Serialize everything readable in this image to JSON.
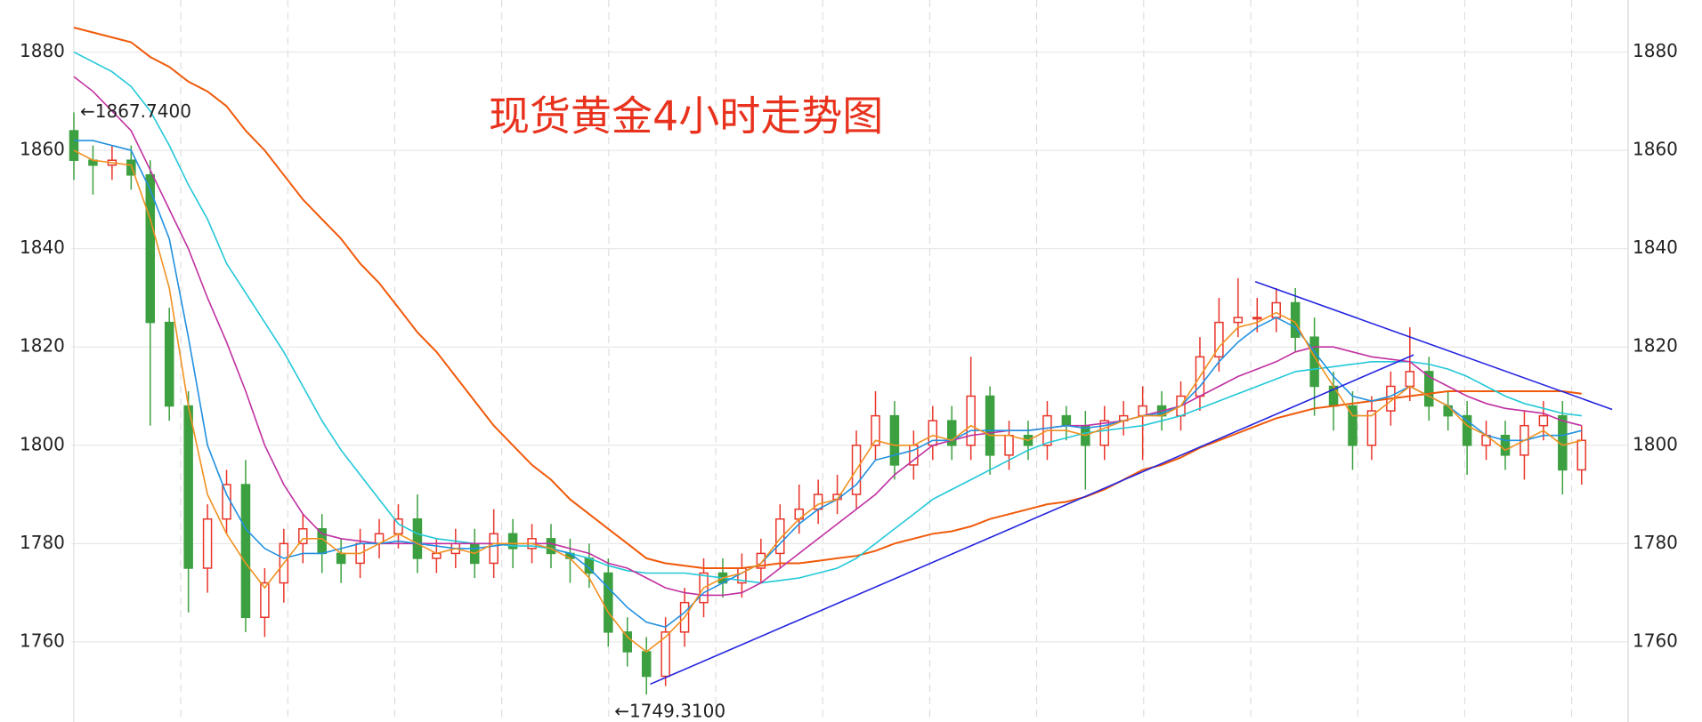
{
  "chart_data": {
    "type": "candlestick",
    "title": "现货黄金4小时走势图",
    "ylim": [
      1743.7,
      1890.6
    ],
    "yticks": [
      1760,
      1780,
      1800,
      1820,
      1840,
      1860,
      1880
    ],
    "grid": true,
    "up_color": "#e8352a",
    "down_color": "#3ca040",
    "open": [
      1864,
      1858,
      1857,
      1858,
      1855,
      1825,
      1808,
      1775,
      1785,
      1792,
      1765,
      1772,
      1780,
      1783,
      1778,
      1776,
      1780,
      1782,
      1785,
      1777,
      1778,
      1780,
      1776,
      1782,
      1779,
      1781,
      1778,
      1777,
      1774,
      1762,
      1758,
      1753,
      1762,
      1768,
      1774,
      1772,
      1775,
      1778,
      1785,
      1787,
      1789,
      1790,
      1800,
      1806,
      1796,
      1800,
      1805,
      1800,
      1810,
      1798,
      1802,
      1800,
      1806,
      1804,
      1800,
      1805,
      1806,
      1808,
      1806,
      1810,
      1818,
      1825,
      1826,
      1826,
      1829,
      1822,
      1812,
      1808,
      1800,
      1807,
      1812,
      1815,
      1808,
      1806,
      1800,
      1802,
      1798,
      1804,
      1806,
      1795
    ],
    "high": [
      1867.74,
      1861,
      1861,
      1861,
      1858,
      1828,
      1811,
      1788,
      1795,
      1797,
      1775,
      1783,
      1786,
      1786,
      1781,
      1783,
      1785,
      1788,
      1790,
      1781,
      1783,
      1783,
      1787,
      1785,
      1784,
      1784,
      1781,
      1780,
      1777,
      1765,
      1761,
      1765,
      1771,
      1777,
      1777,
      1778,
      1781,
      1788,
      1792,
      1793,
      1794,
      1803,
      1811,
      1809,
      1803,
      1808,
      1808,
      1818,
      1812,
      1805,
      1805,
      1809,
      1808,
      1807,
      1808,
      1809,
      1812,
      1811,
      1813,
      1822,
      1830,
      1834,
      1830,
      1832,
      1832,
      1826,
      1815,
      1811,
      1810,
      1815,
      1824,
      1818,
      1811,
      1809,
      1805,
      1805,
      1807,
      1809,
      1809,
      1804
    ],
    "low": [
      1854,
      1851,
      1854,
      1852,
      1804,
      1805,
      1766,
      1770,
      1782,
      1762,
      1761,
      1768,
      1776,
      1774,
      1772,
      1773,
      1777,
      1779,
      1774,
      1774,
      1775,
      1773,
      1773,
      1775,
      1776,
      1775,
      1772,
      1771,
      1759,
      1755,
      1749.31,
      1751,
      1759,
      1765,
      1769,
      1769,
      1772,
      1775,
      1782,
      1784,
      1786,
      1787,
      1797,
      1793,
      1793,
      1797,
      1797,
      1797,
      1794,
      1795,
      1797,
      1797,
      1801,
      1791,
      1797,
      1802,
      1797,
      1803,
      1803,
      1807,
      1815,
      1822,
      1823,
      1823,
      1819,
      1806,
      1803,
      1795,
      1797,
      1804,
      1809,
      1805,
      1803,
      1794,
      1797,
      1795,
      1793,
      1801,
      1790,
      1792
    ],
    "close": [
      1858,
      1857,
      1858,
      1855,
      1825,
      1808,
      1775,
      1785,
      1792,
      1765,
      1772,
      1780,
      1783,
      1778,
      1776,
      1780,
      1782,
      1785,
      1777,
      1778,
      1780,
      1776,
      1782,
      1779,
      1781,
      1778,
      1777,
      1774,
      1762,
      1758,
      1753,
      1762,
      1768,
      1774,
      1772,
      1775,
      1778,
      1785,
      1787,
      1790,
      1790,
      1800,
      1806,
      1796,
      1800,
      1805,
      1800,
      1810,
      1798,
      1802,
      1800,
      1806,
      1804,
      1800,
      1805,
      1806,
      1808,
      1806,
      1810,
      1818,
      1825,
      1826,
      1826,
      1829,
      1822,
      1812,
      1808,
      1800,
      1807,
      1812,
      1815,
      1808,
      1806,
      1800,
      1802,
      1798,
      1804,
      1806,
      1795,
      1801
    ],
    "series": [
      {
        "color": "#f05a0a",
        "values": [
          1885,
          1884,
          1883,
          1882,
          1879,
          1877,
          1874,
          1872,
          1869,
          1864,
          1860,
          1855,
          1850,
          1846,
          1842,
          1837,
          1833,
          1828,
          1823,
          1819,
          1814,
          1809,
          1804,
          1800,
          1796,
          1793,
          1789,
          1786,
          1783,
          1780,
          1777,
          1776,
          1775.5,
          1775,
          1775,
          1775,
          1775.5,
          1776,
          1776,
          1776.5,
          1777,
          1777.5,
          1778.5,
          1780,
          1781,
          1782,
          1782.5,
          1783.5,
          1785,
          1786,
          1787,
          1788,
          1788.5,
          1789.5,
          1791,
          1793,
          1795,
          1796,
          1797.5,
          1799.5,
          1801,
          1802.5,
          1804,
          1805.5,
          1806.5,
          1807.5,
          1808,
          1808.5,
          1809,
          1809.5,
          1810,
          1810.5,
          1811,
          1811,
          1811,
          1811,
          1811,
          1811,
          1811,
          1810.5
        ]
      },
      {
        "color": "#22c8d8",
        "values": [
          1880,
          1878,
          1876,
          1873,
          1868,
          1861,
          1853,
          1846,
          1837,
          1831,
          1825,
          1819,
          1812,
          1805,
          1799,
          1794,
          1789,
          1784,
          1782,
          1781,
          1780.5,
          1780,
          1780,
          1779.5,
          1779.5,
          1779,
          1778,
          1777,
          1775.5,
          1774.5,
          1774,
          1774,
          1774,
          1773.5,
          1773,
          1772.5,
          1772,
          1772.5,
          1773,
          1774,
          1775,
          1777,
          1780,
          1783,
          1786,
          1789,
          1791,
          1793,
          1795,
          1797,
          1799,
          1800.5,
          1801.5,
          1802.5,
          1803,
          1803.5,
          1804,
          1805,
          1806,
          1807.5,
          1809,
          1810.5,
          1812,
          1813.5,
          1815,
          1815.5,
          1816,
          1816.5,
          1817,
          1817,
          1817,
          1816.5,
          1815.5,
          1814,
          1812,
          1810,
          1808.5,
          1807.5,
          1806.5,
          1806
        ]
      },
      {
        "color": "#c030a0",
        "values": [
          1875,
          1872,
          1868,
          1864,
          1856,
          1848,
          1840,
          1830,
          1821,
          1811,
          1800,
          1792,
          1786,
          1782,
          1781,
          1780.5,
          1780,
          1780,
          1780,
          1780,
          1780,
          1780,
          1780,
          1780,
          1780,
          1780,
          1779,
          1778,
          1776,
          1775,
          1773,
          1771,
          1770,
          1769.5,
          1769.5,
          1770,
          1772,
          1775,
          1778,
          1781,
          1784,
          1787,
          1790,
          1794,
          1797,
          1800,
          1801,
          1802,
          1802.5,
          1803,
          1803,
          1803.5,
          1804,
          1804,
          1804.5,
          1805,
          1806,
          1807,
          1808,
          1810,
          1812,
          1814,
          1815.5,
          1817,
          1819,
          1820,
          1820,
          1819,
          1818,
          1817.5,
          1817,
          1814,
          1812,
          1810,
          1808.5,
          1807.5,
          1807,
          1806.5,
          1805,
          1804
        ]
      },
      {
        "color": "#2090e0",
        "values": [
          1862,
          1862,
          1861,
          1860,
          1852,
          1842,
          1822,
          1800,
          1790,
          1783,
          1779,
          1777,
          1778,
          1778,
          1779,
          1780,
          1780,
          1780.5,
          1780,
          1779.5,
          1779,
          1779,
          1779.5,
          1780,
          1780,
          1779,
          1778,
          1775,
          1771,
          1767,
          1764,
          1763,
          1766,
          1770,
          1772,
          1774,
          1776,
          1780,
          1784,
          1787,
          1789,
          1792,
          1797,
          1798,
          1799,
          1801,
          1801,
          1803,
          1803,
          1803,
          1803,
          1803.5,
          1804,
          1803.5,
          1804,
          1805,
          1806,
          1806.5,
          1808,
          1812,
          1817,
          1821,
          1824,
          1826,
          1824,
          1819,
          1814,
          1810,
          1809,
          1810,
          1812,
          1810,
          1808,
          1805,
          1802,
          1801,
          1801,
          1802,
          1802,
          1803
        ]
      },
      {
        "color": "#f09020",
        "values": [
          1860,
          1858,
          1857.5,
          1857,
          1846,
          1832,
          1808,
          1790,
          1782,
          1776,
          1771,
          1776,
          1781,
          1781,
          1778,
          1778,
          1780,
          1782,
          1780,
          1778,
          1779,
          1778,
          1780,
          1780,
          1780,
          1779,
          1777,
          1773,
          1766,
          1761,
          1758,
          1761,
          1765,
          1771,
          1773,
          1774,
          1776,
          1781,
          1785,
          1788,
          1789,
          1795,
          1801,
          1800,
          1800,
          1802,
          1801,
          1804,
          1802,
          1802,
          1801,
          1803,
          1803,
          1802,
          1803.5,
          1805,
          1806,
          1806,
          1808,
          1814,
          1820,
          1824,
          1825,
          1827,
          1825,
          1818,
          1812,
          1806,
          1806,
          1809,
          1812,
          1810,
          1808,
          1804,
          1802,
          1799,
          1801,
          1803,
          1800,
          1801
        ]
      }
    ],
    "trend_lines": [
      {
        "color": "#2424e0",
        "x": [
          30.2,
          70.2
        ],
        "y": [
          1751.4,
          1818.4
        ]
      },
      {
        "color": "#2424e0",
        "x": [
          61.9,
          80.6
        ],
        "y": [
          1833.3,
          1807.3
        ]
      }
    ],
    "annotations": [
      {
        "text": "←1867.7400"
      },
      {
        "text": "←1749.3100"
      }
    ]
  }
}
